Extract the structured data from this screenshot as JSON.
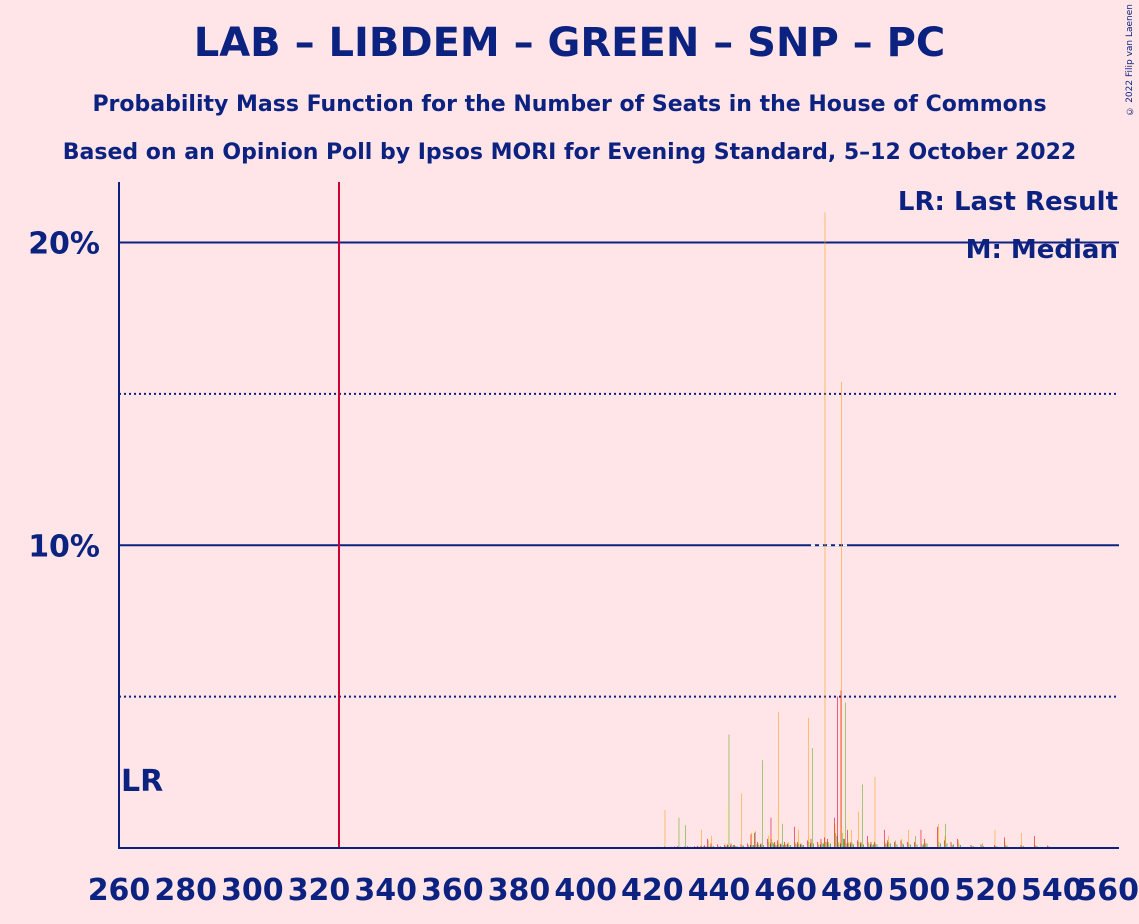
{
  "title": "LAB – LIBDEM – GREEN – SNP – PC",
  "subtitle": "Probability Mass Function for the Number of Seats in the House of Commons",
  "source": "Based on an Opinion Poll by Ipsos MORI for Evening Standard, 5–12 October 2022",
  "copyright": "© 2022 Filip van Laenen",
  "legend": {
    "last_result": "LR: Last Result",
    "median": "M: Median"
  },
  "lr_label": "LR",
  "colors": {
    "background": "#ffe4e8",
    "text": "#0c2280",
    "majority_line": "#cc0033",
    "lab": "#e4003b",
    "libdem": "#faa61a",
    "green": "#6ab023",
    "snp": "#fdf38e",
    "pc": "#008142"
  },
  "chart_data": {
    "type": "bar",
    "x_range": [
      260,
      560
    ],
    "y_range": [
      0,
      0.22
    ],
    "x_ticks": [
      "260",
      "280",
      "300",
      "320",
      "340",
      "360",
      "380",
      "400",
      "420",
      "440",
      "460",
      "480",
      "500",
      "520",
      "540",
      "560"
    ],
    "y_ticks": [
      {
        "value": 0.1,
        "label": "10%"
      },
      {
        "value": 0.2,
        "label": "20%"
      }
    ],
    "dotted_gridlines": [
      0.05,
      0.15
    ],
    "majority_line": 326,
    "last_result": 262,
    "median": 473,
    "series_order": [
      "lab",
      "libdem",
      "green",
      "snp",
      "pc"
    ],
    "bars": [
      {
        "x": 414,
        "v": [
          0.0003,
          0.0003,
          0.0002,
          0.0003,
          0.0002
        ]
      },
      {
        "x": 418,
        "v": [
          0.0002,
          0.0002,
          0.0001,
          0.0002,
          0.0001
        ]
      },
      {
        "x": 422,
        "v": [
          0.0004,
          0.0004,
          0.0003,
          0.0004,
          0.0003
        ]
      },
      {
        "x": 423,
        "v": [
          0.0003,
          0.0002,
          0.0002,
          0.0002,
          0.0002
        ]
      },
      {
        "x": 424,
        "v": [
          0.0005,
          0.0126,
          0.0003,
          0.0004,
          0.0003
        ]
      },
      {
        "x": 426,
        "v": [
          0.0004,
          0.0003,
          0.0002,
          0.0004,
          0.0003
        ]
      },
      {
        "x": 427,
        "v": [
          0.0005,
          0.0004,
          0.0003,
          0.0004,
          0.0003
        ]
      },
      {
        "x": 428,
        "v": [
          0.0006,
          0.0004,
          0.01,
          0.0005,
          0.0004
        ]
      },
      {
        "x": 430,
        "v": [
          0.0005,
          0.0003,
          0.0075,
          0.0004,
          0.0003
        ]
      },
      {
        "x": 431,
        "v": [
          0.0006,
          0.0004,
          0.0003,
          0.0005,
          0.0004
        ]
      },
      {
        "x": 433,
        "v": [
          0.0006,
          0.0004,
          0.0003,
          0.0005,
          0.0004
        ]
      },
      {
        "x": 434,
        "v": [
          0.0007,
          0.0005,
          0.0003,
          0.0006,
          0.0004
        ]
      },
      {
        "x": 435,
        "v": [
          0.0008,
          0.006,
          0.0004,
          0.0006,
          0.0005
        ]
      },
      {
        "x": 436,
        "v": [
          0.0009,
          0.0005,
          0.0004,
          0.0007,
          0.0005
        ]
      },
      {
        "x": 437,
        "v": [
          0.003,
          0.0025,
          0.0005,
          0.0015,
          0.0005
        ]
      },
      {
        "x": 438,
        "v": [
          0.0015,
          0.004,
          0.0005,
          0.0025,
          0.0006
        ]
      },
      {
        "x": 440,
        "v": [
          0.0012,
          0.0006,
          0.0005,
          0.0008,
          0.0006
        ]
      },
      {
        "x": 442,
        "v": [
          0.001,
          0.0015,
          0.0006,
          0.014,
          0.0008
        ]
      },
      {
        "x": 443,
        "v": [
          0.0012,
          0.001,
          0.0375,
          0.001,
          0.0008
        ]
      },
      {
        "x": 444,
        "v": [
          0.0015,
          0.001,
          0.0008,
          0.0012,
          0.001
        ]
      },
      {
        "x": 445,
        "v": [
          0.001,
          0.0007,
          0.0006,
          0.0008,
          0.0006
        ]
      },
      {
        "x": 447,
        "v": [
          0.0012,
          0.018,
          0.0008,
          0.001,
          0.0008
        ]
      },
      {
        "x": 449,
        "v": [
          0.0015,
          0.001,
          0.0008,
          0.0012,
          0.001
        ]
      },
      {
        "x": 450,
        "v": [
          0.0045,
          0.005,
          0.001,
          0.006,
          0.001
        ]
      },
      {
        "x": 451,
        "v": [
          0.005,
          0.001,
          0.0055,
          0.0015,
          0.0012
        ]
      },
      {
        "x": 452,
        "v": [
          0.002,
          0.0015,
          0.001,
          0.0018,
          0.0012
        ]
      },
      {
        "x": 453,
        "v": [
          0.0015,
          0.001,
          0.029,
          0.0012,
          0.001
        ]
      },
      {
        "x": 455,
        "v": [
          0.003,
          0.004,
          0.002,
          0.005,
          0.0015
        ]
      },
      {
        "x": 456,
        "v": [
          0.01,
          0.003,
          0.002,
          0.004,
          0.0015
        ]
      },
      {
        "x": 457,
        "v": [
          0.002,
          0.0015,
          0.001,
          0.012,
          0.001
        ]
      },
      {
        "x": 458,
        "v": [
          0.0025,
          0.045,
          0.0015,
          0.002,
          0.0012
        ]
      },
      {
        "x": 459,
        "v": [
          0.0015,
          0.001,
          0.008,
          0.0012,
          0.001
        ]
      },
      {
        "x": 460,
        "v": [
          0.002,
          0.0015,
          0.001,
          0.0018,
          0.0012
        ]
      },
      {
        "x": 461,
        "v": [
          0.0015,
          0.002,
          0.001,
          0.0015,
          0.001
        ]
      },
      {
        "x": 463,
        "v": [
          0.007,
          0.002,
          0.0015,
          0.006,
          0.0012
        ]
      },
      {
        "x": 464,
        "v": [
          0.002,
          0.006,
          0.0015,
          0.002,
          0.0012
        ]
      },
      {
        "x": 465,
        "v": [
          0.0015,
          0.001,
          0.001,
          0.0015,
          0.001
        ]
      },
      {
        "x": 467,
        "v": [
          0.0025,
          0.043,
          0.002,
          0.004,
          0.0015
        ]
      },
      {
        "x": 468,
        "v": [
          0.003,
          0.002,
          0.033,
          0.0025,
          0.0015
        ]
      },
      {
        "x": 470,
        "v": [
          0.002,
          0.0015,
          0.001,
          0.0018,
          0.0012
        ]
      },
      {
        "x": 471,
        "v": [
          0.003,
          0.002,
          0.0015,
          0.0025,
          0.0015
        ]
      },
      {
        "x": 472,
        "v": [
          0.0035,
          0.21,
          0.002,
          0.003,
          0.002
        ]
      },
      {
        "x": 473,
        "v": [
          0.003,
          0.002,
          0.0015,
          0.0025,
          0.0015
        ]
      },
      {
        "x": 475,
        "v": [
          0.01,
          0.008,
          0.005,
          0.009,
          0.004
        ]
      },
      {
        "x": 476,
        "v": [
          0.05,
          0.002,
          0.0015,
          0.0025,
          0.0015
        ]
      },
      {
        "x": 477,
        "v": [
          0.052,
          0.154,
          0.005,
          0.006,
          0.003
        ]
      },
      {
        "x": 478,
        "v": [
          0.003,
          0.002,
          0.048,
          0.0025,
          0.0015
        ]
      },
      {
        "x": 479,
        "v": [
          0.006,
          0.002,
          0.0015,
          0.012,
          0.0015
        ]
      },
      {
        "x": 480,
        "v": [
          0.002,
          0.006,
          0.0015,
          0.002,
          0.0012
        ]
      },
      {
        "x": 482,
        "v": [
          0.0025,
          0.012,
          0.002,
          0.0025,
          0.0015
        ]
      },
      {
        "x": 483,
        "v": [
          0.002,
          0.0015,
          0.021,
          0.002,
          0.0012
        ]
      },
      {
        "x": 485,
        "v": [
          0.004,
          0.002,
          0.0015,
          0.003,
          0.0012
        ]
      },
      {
        "x": 486,
        "v": [
          0.002,
          0.0015,
          0.001,
          0.002,
          0.0012
        ]
      },
      {
        "x": 487,
        "v": [
          0.002,
          0.0235,
          0.0015,
          0.002,
          0.0012
        ]
      },
      {
        "x": 490,
        "v": [
          0.006,
          0.002,
          0.0015,
          0.003,
          0.0015
        ]
      },
      {
        "x": 491,
        "v": [
          0.0025,
          0.004,
          0.002,
          0.0025,
          0.0015
        ]
      },
      {
        "x": 493,
        "v": [
          0.002,
          0.0015,
          0.0025,
          0.002,
          0.0012
        ]
      },
      {
        "x": 495,
        "v": [
          0.0025,
          0.003,
          0.0015,
          0.004,
          0.0012
        ]
      },
      {
        "x": 497,
        "v": [
          0.002,
          0.006,
          0.0015,
          0.002,
          0.0012
        ]
      },
      {
        "x": 499,
        "v": [
          0.002,
          0.0015,
          0.004,
          0.002,
          0.0012
        ]
      },
      {
        "x": 501,
        "v": [
          0.006,
          0.0015,
          0.001,
          0.004,
          0.0012
        ]
      },
      {
        "x": 502,
        "v": [
          0.003,
          0.002,
          0.0015,
          0.0025,
          0.0015
        ]
      },
      {
        "x": 506,
        "v": [
          0.007,
          0.008,
          0.002,
          0.006,
          0.0015
        ]
      },
      {
        "x": 508,
        "v": [
          0.0025,
          0.004,
          0.008,
          0.003,
          0.0015
        ]
      },
      {
        "x": 510,
        "v": [
          0.002,
          0.0015,
          0.001,
          0.0015,
          0.0012
        ]
      },
      {
        "x": 512,
        "v": [
          0.003,
          0.0025,
          0.0015,
          0.002,
          0.001
        ]
      },
      {
        "x": 516,
        "v": [
          0.001,
          0.0008,
          0.0006,
          0.0008,
          0.0006
        ]
      },
      {
        "x": 519,
        "v": [
          0.0012,
          0.0008,
          0.0015,
          0.001,
          0.0006
        ]
      },
      {
        "x": 523,
        "v": [
          0.001,
          0.006,
          0.0006,
          0.0008,
          0.0006
        ]
      },
      {
        "x": 526,
        "v": [
          0.0035,
          0.002,
          0.001,
          0.003,
          0.0008
        ]
      },
      {
        "x": 531,
        "v": [
          0.001,
          0.005,
          0.0006,
          0.0008,
          0.0006
        ]
      },
      {
        "x": 535,
        "v": [
          0.004,
          0.001,
          0.0008,
          0.003,
          0.0006
        ]
      },
      {
        "x": 539,
        "v": [
          0.0008,
          0.0006,
          0.0005,
          0.0006,
          0.0004
        ]
      }
    ]
  }
}
